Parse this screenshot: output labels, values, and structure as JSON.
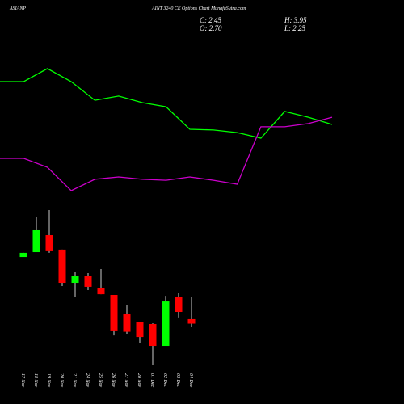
{
  "chart_data": [
    {
      "type": "line",
      "categories": [
        null,
        null,
        null,
        null,
        null,
        null,
        null,
        null,
        null,
        null,
        null,
        null,
        null,
        null,
        null
      ],
      "ylim": [
        -2.0,
        20.37
      ],
      "series": [
        {
          "color": "#00ff00",
          "values": [
            15.85,
            15.85,
            16.57,
            15.85,
            14.82,
            15.05,
            14.69,
            14.46,
            13.21,
            13.17,
            13.03,
            12.72,
            14.2,
            13.88,
            13.48
          ]
        },
        {
          "color": "#cc00cc",
          "values": [
            11.6,
            11.6,
            11.11,
            9.81,
            10.44,
            10.57,
            10.44,
            10.39,
            10.57,
            10.39,
            10.17,
            13.35,
            13.35,
            13.53,
            13.88
          ]
        }
      ]
    },
    {
      "type": "candlestick",
      "title_left": "ASIANP",
      "title_right": "AINT 3240 CE Options Chart MunafaSutra.com",
      "header": {
        "close": "C: 2.45",
        "high": "H: 3.95",
        "open": "O: 2.70",
        "low": "L: 2.25"
      },
      "categories": [
        "17 Nov",
        "18 Nov",
        "19 Nov",
        "20 Nov",
        "21 Nov",
        "24 Nov",
        "25 Nov",
        "26 Nov",
        "27 Nov",
        "28 Nov",
        "01 Dec",
        "02 Dec",
        "03 Dec",
        "04 Dec"
      ],
      "open": [
        6.14,
        6.41,
        7.35,
        6.55,
        4.71,
        5.11,
        4.44,
        4.04,
        2.97,
        2.52,
        2.43,
        1.22,
        3.95,
        2.7
      ],
      "high": [
        6.37,
        8.34,
        8.74,
        6.55,
        5.29,
        5.25,
        5.47,
        4.04,
        3.46,
        2.56,
        2.47,
        3.99,
        4.13,
        3.95
      ],
      "low": [
        6.14,
        6.41,
        6.37,
        4.53,
        3.91,
        4.31,
        4.08,
        1.8,
        1.89,
        1.36,
        0.15,
        1.22,
        2.79,
        2.25
      ],
      "close": [
        6.37,
        7.62,
        6.46,
        4.71,
        5.11,
        4.49,
        4.08,
        2.03,
        2.0,
        1.71,
        1.22,
        3.68,
        3.1,
        2.45
      ],
      "up_color": "#00ff00",
      "down_color": "#ff0000",
      "wick_color": "#cccccc",
      "ylim": [
        -2.0,
        20.37
      ]
    }
  ]
}
